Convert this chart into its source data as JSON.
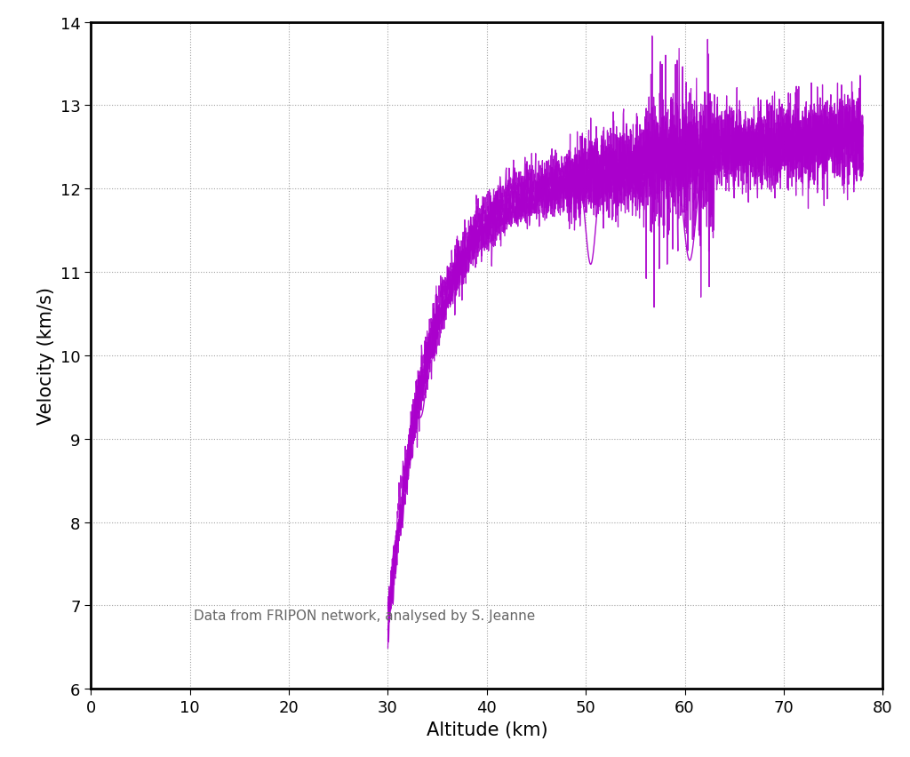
{
  "xlabel": "Altitude (km)",
  "ylabel": "Velocity (km/s)",
  "annotation": "Data from FRIPON network, analysed by S. Jeanne",
  "xlim": [
    0,
    80
  ],
  "ylim": [
    6,
    14
  ],
  "xticks": [
    0,
    10,
    20,
    30,
    40,
    50,
    60,
    70,
    80
  ],
  "yticks": [
    6,
    7,
    8,
    9,
    10,
    11,
    12,
    13,
    14
  ],
  "line_color": "#aa00cc",
  "background_color": "#ffffff",
  "grid_color": "#999999",
  "xlabel_fontsize": 15,
  "ylabel_fontsize": 15,
  "tick_fontsize": 13,
  "annotation_fontsize": 11,
  "figsize": [
    10.24,
    8.53
  ],
  "dpi": 100,
  "seed": 42
}
